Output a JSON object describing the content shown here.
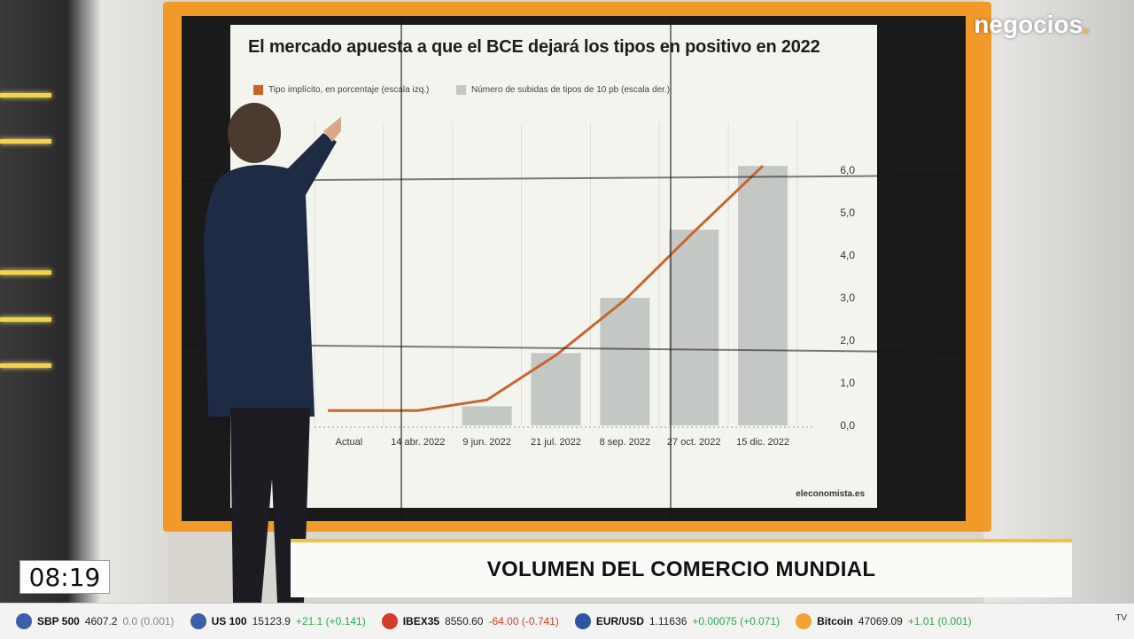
{
  "brand": {
    "logo_text": "negocios",
    "logo_dot": "."
  },
  "chart": {
    "title": "El mercado apuesta a que el BCE dejará los tipos en positivo en 2022",
    "legend_line": "Tipo implícito, en porcentaje (escala izq.)",
    "legend_bar": "Número de subidas de tipos de 10 pb (escala der.)",
    "source": "eleconomista.es",
    "line_color": "#c9652c",
    "bar_color": "#c4c8c4"
  },
  "chart_data": {
    "type": "bar",
    "categories": [
      "Actual",
      "14 abr. 2022",
      "9 jun. 2022",
      "21 jul. 2022",
      "8 sep. 2022",
      "27 oct. 2022",
      "15 dic. 2022"
    ],
    "series": [
      {
        "name": "Número de subidas de tipos de 10 pb (escala der.)",
        "type": "bar",
        "values": [
          0,
          0,
          0.45,
          1.7,
          3.0,
          4.6,
          6.1
        ]
      },
      {
        "name": "Tipo implícito, en porcentaje (escala izq.)",
        "type": "line",
        "values": [
          0.35,
          0.35,
          0.6,
          1.65,
          2.95,
          4.55,
          6.1
        ]
      }
    ],
    "y_right_ticks": [
      "0,0",
      "1,0",
      "2,0",
      "3,0",
      "4,0",
      "5,0",
      "6,0"
    ],
    "ylim": [
      0,
      6.5
    ],
    "grid": true
  },
  "lower_third": {
    "headline": "VOLUMEN DEL COMERCIO MUNDIAL"
  },
  "clock": {
    "time": "08:19"
  },
  "ticker": [
    {
      "name": "SBP 500",
      "value": "4607.2",
      "change": "0.0 (0.001)",
      "dir": "flat",
      "flag_color": "#3b5fa8"
    },
    {
      "name": "US 100",
      "value": "15123.9",
      "change": "+21.1 (+0.141)",
      "dir": "up",
      "flag_color": "#3b5fa8"
    },
    {
      "name": "IBEX35",
      "value": "8550.60",
      "change": "-64.00 (-0.741)",
      "dir": "down",
      "flag_color": "#d23b2e"
    },
    {
      "name": "EUR/USD",
      "value": "1.11636",
      "change": "+0.00075 (+0.071)",
      "dir": "up",
      "flag_color": "#2b56a3"
    },
    {
      "name": "Bitcoin",
      "value": "47069.09",
      "change": "+1.01 (0.001)",
      "dir": "up",
      "flag_color": "#f2a233"
    }
  ],
  "tv_label": "TV"
}
